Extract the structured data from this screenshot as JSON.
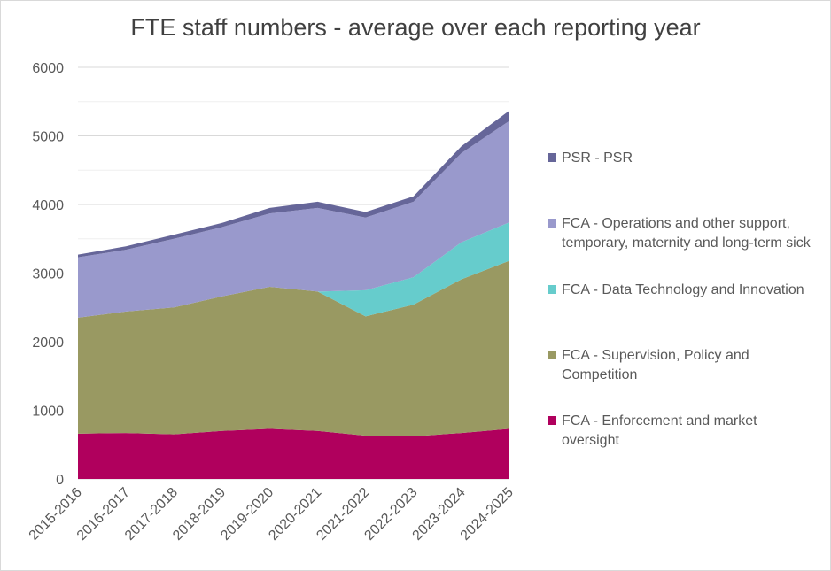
{
  "chart_data": {
    "type": "area",
    "stacked": true,
    "title": "FTE staff numbers - average over each reporting year",
    "xlabel": "",
    "ylabel": "",
    "ylim": [
      0,
      6000
    ],
    "yticks": [
      0,
      1000,
      2000,
      3000,
      4000,
      5000,
      6000
    ],
    "grid": true,
    "legend_position": "right",
    "categories": [
      "2015-2016",
      "2016-2017",
      "2017-2018",
      "2018-2019",
      "2019-2020",
      "2020-2021",
      "2021-2022",
      "2022-2023",
      "2023-2024",
      "2024-2025"
    ],
    "series": [
      {
        "name": "FCA - Enforcement and market oversight",
        "color": "#b0005d",
        "values": [
          660,
          670,
          650,
          700,
          730,
          700,
          630,
          620,
          670,
          730
        ]
      },
      {
        "name": "FCA - Supervision, Policy and Competition",
        "color": "#999962",
        "values": [
          1690,
          1770,
          1850,
          1960,
          2070,
          2030,
          1740,
          1920,
          2240,
          2450
        ]
      },
      {
        "name": "FCA - Data Technology and Innovation",
        "color": "#66cccc",
        "values": [
          0,
          0,
          0,
          0,
          0,
          0,
          380,
          400,
          540,
          560
        ]
      },
      {
        "name": "FCA - Operations and other support, temporary, maternity and long-term sick",
        "color": "#9999cc",
        "values": [
          880,
          900,
          1000,
          1010,
          1070,
          1220,
          1060,
          1100,
          1300,
          1480
        ]
      },
      {
        "name": "PSR - PSR",
        "color": "#666699",
        "values": [
          40,
          50,
          60,
          60,
          80,
          90,
          80,
          80,
          100,
          150
        ]
      }
    ]
  },
  "legend_order": [
    4,
    3,
    2,
    1,
    0
  ]
}
